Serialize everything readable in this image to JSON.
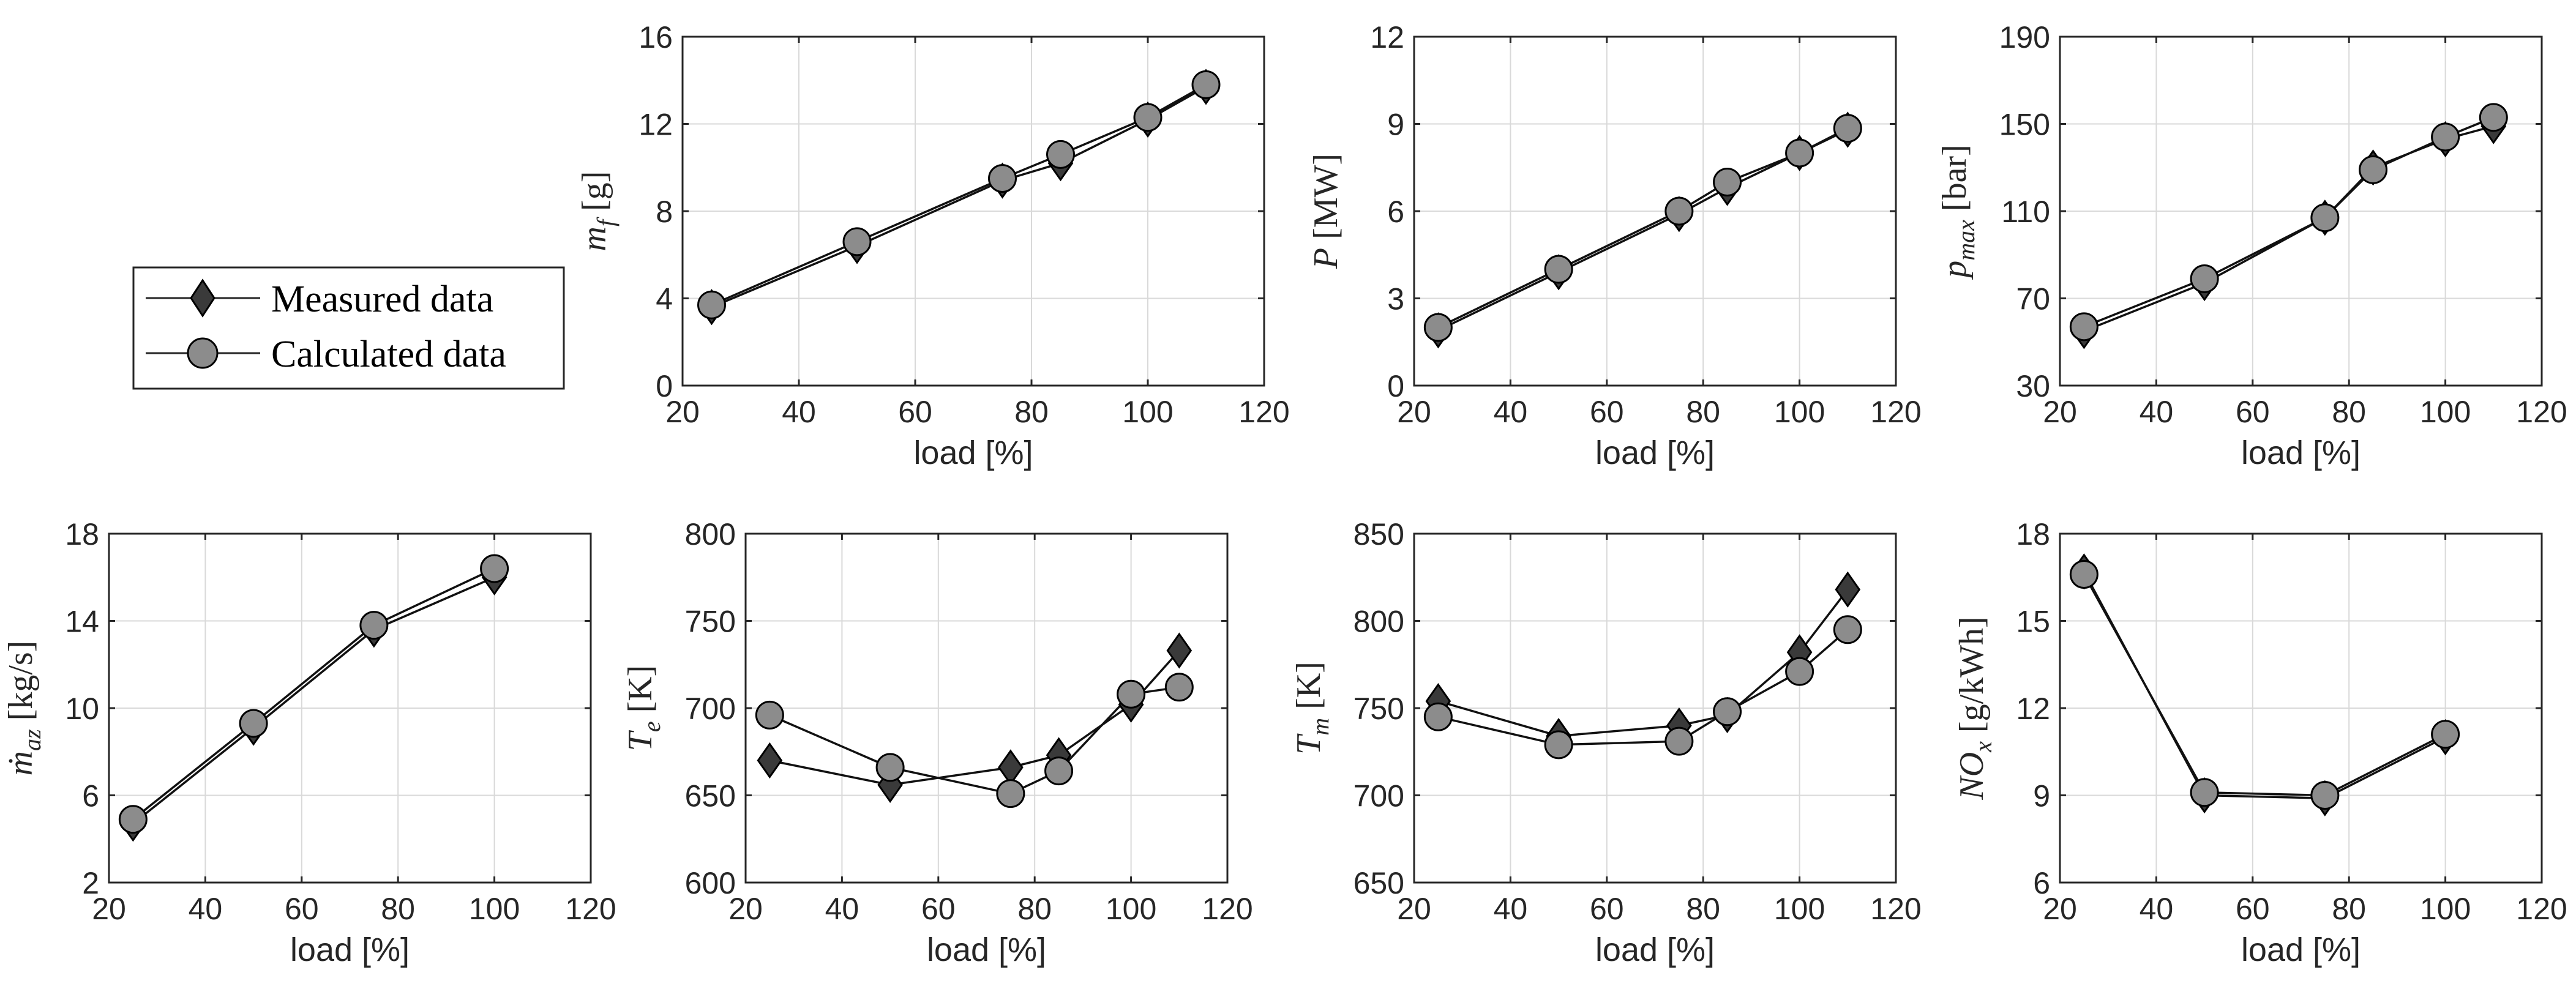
{
  "colors": {
    "measured": "#3a3a3a",
    "calculated": "#8c8c8c",
    "grid": "#d9d9d9",
    "axis": "#262626"
  },
  "legend": {
    "measured": "Measured data",
    "calculated": "Calculated data"
  },
  "chart_data": [
    {
      "id": "mf",
      "type": "line",
      "title": "",
      "xlabel": "load [%]",
      "ylabel": {
        "sym": "m",
        "sub": "f",
        "unit": " [g]"
      },
      "xlim": [
        20,
        120
      ],
      "ylim": [
        0,
        16
      ],
      "xticks": [
        20,
        40,
        60,
        80,
        100,
        120
      ],
      "yticks": [
        0,
        4,
        8,
        12,
        16
      ],
      "series": [
        {
          "name": "Measured data",
          "marker": "diamond",
          "x": [
            25,
            50,
            75,
            85,
            100,
            110
          ],
          "y": [
            3.6,
            6.4,
            9.4,
            10.2,
            12.2,
            13.7
          ]
        },
        {
          "name": "Calculated data",
          "marker": "circle",
          "x": [
            25,
            50,
            75,
            85,
            100,
            110
          ],
          "y": [
            3.7,
            6.6,
            9.5,
            10.6,
            12.3,
            13.8
          ]
        }
      ]
    },
    {
      "id": "P",
      "type": "line",
      "title": "",
      "xlabel": "load [%]",
      "ylabel": {
        "sym": "P",
        "sub": "",
        "unit": " [MW]"
      },
      "xlim": [
        20,
        120
      ],
      "ylim": [
        0,
        12
      ],
      "xticks": [
        20,
        40,
        60,
        80,
        100,
        120
      ],
      "yticks": [
        0,
        3,
        6,
        9,
        12
      ],
      "series": [
        {
          "name": "Measured data",
          "marker": "diamond",
          "x": [
            25,
            50,
            75,
            85,
            100,
            110
          ],
          "y": [
            1.9,
            3.9,
            5.9,
            6.8,
            8.0,
            8.8
          ]
        },
        {
          "name": "Calculated data",
          "marker": "circle",
          "x": [
            25,
            50,
            75,
            85,
            100,
            110
          ],
          "y": [
            2.0,
            4.0,
            6.0,
            7.0,
            8.0,
            8.85
          ]
        }
      ]
    },
    {
      "id": "pmax",
      "type": "line",
      "title": "",
      "xlabel": "load [%]",
      "ylabel": {
        "sym": "p",
        "sub": "max",
        "unit": " [bar]"
      },
      "xlim": [
        20,
        120
      ],
      "ylim": [
        30,
        190
      ],
      "xticks": [
        20,
        40,
        60,
        80,
        100,
        120
      ],
      "yticks": [
        30,
        70,
        110,
        150,
        190
      ],
      "series": [
        {
          "name": "Measured data",
          "marker": "diamond",
          "x": [
            25,
            50,
            75,
            85,
            100,
            110
          ],
          "y": [
            55,
            77,
            107,
            130,
            143,
            149
          ]
        },
        {
          "name": "Calculated data",
          "marker": "circle",
          "x": [
            25,
            50,
            75,
            85,
            100,
            110
          ],
          "y": [
            57,
            79,
            107,
            129,
            144,
            153
          ]
        }
      ]
    },
    {
      "id": "maz",
      "type": "line",
      "title": "",
      "xlabel": "load [%]",
      "ylabel": {
        "sym": "ṁ",
        "sub": "az",
        "unit": " [kg/s]"
      },
      "xlim": [
        20,
        120
      ],
      "ylim": [
        2,
        18
      ],
      "xticks": [
        20,
        40,
        60,
        80,
        100,
        120
      ],
      "yticks": [
        2,
        6,
        10,
        14,
        18
      ],
      "series": [
        {
          "name": "Measured data",
          "marker": "diamond",
          "x": [
            25,
            50,
            75,
            100
          ],
          "y": [
            4.7,
            9.1,
            13.6,
            16.0
          ]
        },
        {
          "name": "Calculated data",
          "marker": "circle",
          "x": [
            25,
            50,
            75,
            100
          ],
          "y": [
            4.9,
            9.3,
            13.8,
            16.4
          ]
        }
      ]
    },
    {
      "id": "Te",
      "type": "line",
      "title": "",
      "xlabel": "load [%]",
      "ylabel": {
        "sym": "T",
        "sub": "e",
        "unit": " [K]"
      },
      "xlim": [
        20,
        120
      ],
      "ylim": [
        600,
        800
      ],
      "xticks": [
        20,
        40,
        60,
        80,
        100,
        120
      ],
      "yticks": [
        600,
        650,
        700,
        750,
        800
      ],
      "series": [
        {
          "name": "Measured data",
          "marker": "diamond",
          "x": [
            25,
            50,
            75,
            85,
            100,
            110
          ],
          "y": [
            670,
            656,
            666,
            673,
            702,
            733
          ]
        },
        {
          "name": "Calculated data",
          "marker": "circle",
          "x": [
            25,
            50,
            75,
            85,
            100,
            110
          ],
          "y": [
            696,
            666,
            651,
            664,
            708,
            712
          ]
        }
      ]
    },
    {
      "id": "Tm",
      "type": "line",
      "title": "",
      "xlabel": "load [%]",
      "ylabel": {
        "sym": "T",
        "sub": "m",
        "unit": " [K]"
      },
      "xlim": [
        20,
        120
      ],
      "ylim": [
        650,
        850
      ],
      "xticks": [
        20,
        40,
        60,
        80,
        100,
        120
      ],
      "yticks": [
        650,
        700,
        750,
        800,
        850
      ],
      "series": [
        {
          "name": "Measured data",
          "marker": "diamond",
          "x": [
            25,
            50,
            75,
            85,
            100,
            110
          ],
          "y": [
            754,
            734,
            740,
            746,
            782,
            818
          ]
        },
        {
          "name": "Calculated data",
          "marker": "circle",
          "x": [
            25,
            50,
            75,
            85,
            100,
            110
          ],
          "y": [
            745,
            729,
            731,
            748,
            771,
            795
          ]
        }
      ]
    },
    {
      "id": "NOx",
      "type": "line",
      "title": "",
      "xlabel": "load [%]",
      "ylabel": {
        "sym": "NO",
        "sub": "x",
        "unit": " [g/kWh]"
      },
      "xlim": [
        20,
        120
      ],
      "ylim": [
        6,
        18
      ],
      "xticks": [
        20,
        40,
        60,
        80,
        100,
        120
      ],
      "yticks": [
        6,
        9,
        12,
        15,
        18
      ],
      "series": [
        {
          "name": "Measured data",
          "marker": "diamond",
          "x": [
            25,
            50,
            75,
            100
          ],
          "y": [
            16.7,
            9.0,
            8.9,
            11.0
          ]
        },
        {
          "name": "Calculated data",
          "marker": "circle",
          "x": [
            25,
            50,
            75,
            100
          ],
          "y": [
            16.6,
            9.1,
            9.0,
            11.1
          ]
        }
      ]
    }
  ]
}
